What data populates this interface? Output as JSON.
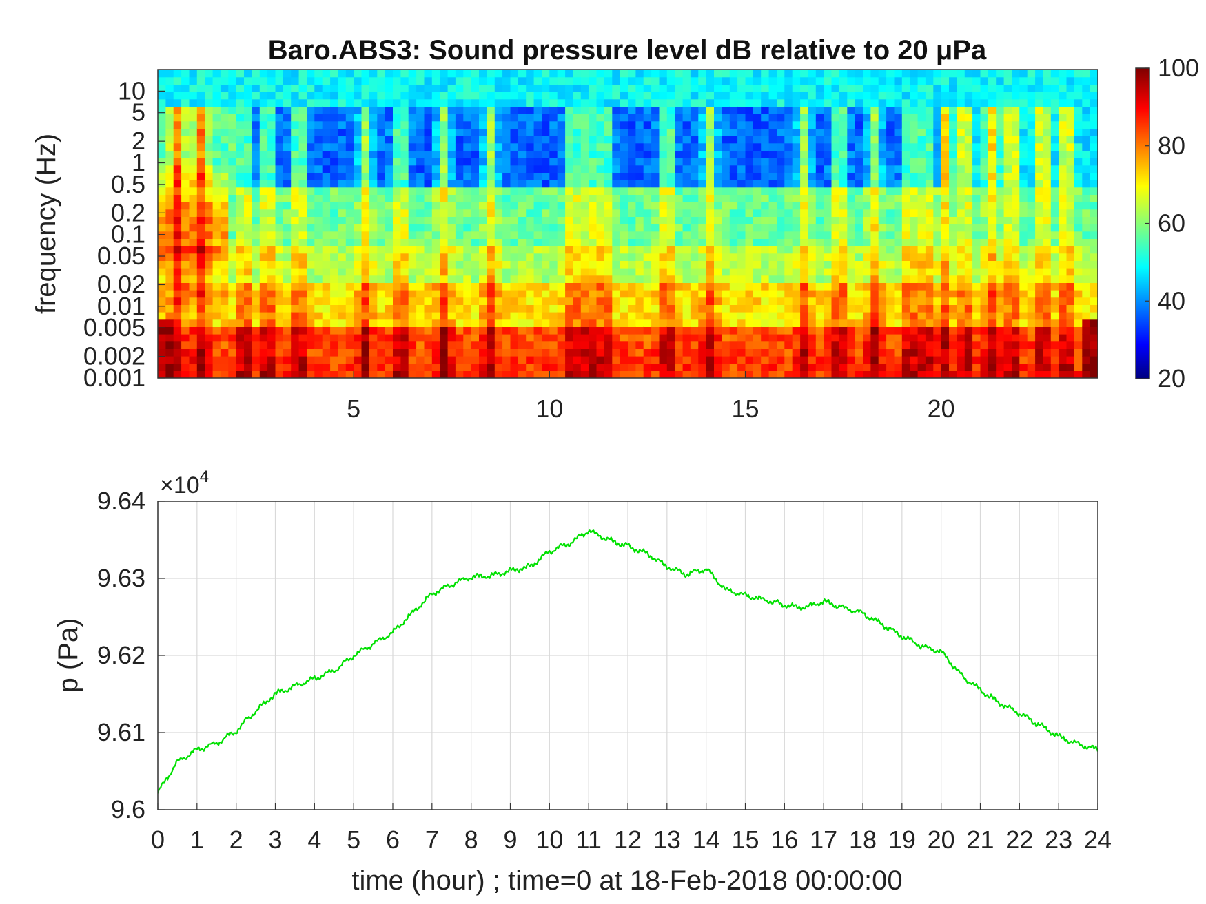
{
  "chart_data": [
    {
      "type": "heatmap",
      "title": "Baro.ABS3: Sound pressure level dB relative to 20 μPa",
      "ylabel": "frequency (Hz)",
      "xlabel": "",
      "yscale": "log",
      "ylim": [
        0.001,
        20
      ],
      "xlim": [
        0,
        24
      ],
      "x_ticks": [
        "5",
        "10",
        "15",
        "20"
      ],
      "x_tick_values": [
        5,
        10,
        15,
        20
      ],
      "y_ticks": [
        "10",
        "5",
        "2",
        "1",
        "0.5",
        "0.2",
        "0.1",
        "0.05",
        "0.02",
        "0.01",
        "0.005",
        "0.002",
        "0.001"
      ],
      "y_tick_values": [
        10,
        5,
        2,
        1,
        0.5,
        0.2,
        0.1,
        0.05,
        0.02,
        0.01,
        0.005,
        0.002,
        0.001
      ],
      "colormap": "jet",
      "colorbar": {
        "range": [
          20,
          100
        ],
        "ticks": [
          "100",
          "80",
          "60",
          "40",
          "20"
        ],
        "tick_values": [
          100,
          80,
          60,
          40,
          20
        ]
      },
      "description_levels_db": {
        "above_5Hz": 50,
        "0.5_to_5Hz_quiet": 38,
        "0.02_to_0.5Hz": 58,
        "0.005_to_0.02Hz": 72,
        "below_0.005Hz": 88
      }
    },
    {
      "type": "line",
      "title": "",
      "xlabel": "time (hour) ; time=0 at 18-Feb-2018 00:00:00",
      "ylabel": "p (Pa)",
      "y_multiplier": "×10",
      "y_multiplier_exponent": "4",
      "xlim": [
        0,
        24
      ],
      "ylim": [
        9.6,
        9.64
      ],
      "x_ticks": [
        "0",
        "1",
        "2",
        "3",
        "4",
        "5",
        "6",
        "7",
        "8",
        "9",
        "10",
        "11",
        "12",
        "13",
        "14",
        "15",
        "16",
        "17",
        "18",
        "19",
        "20",
        "21",
        "22",
        "23",
        "24"
      ],
      "y_ticks": [
        "9.64",
        "9.63",
        "9.62",
        "9.61",
        "9.6"
      ],
      "y_tick_values": [
        9.64,
        9.63,
        9.62,
        9.61,
        9.6
      ],
      "grid": true,
      "series": [
        {
          "color": "#00e000",
          "x": [
            0,
            0.5,
            1,
            1.5,
            2,
            2.5,
            3,
            3.5,
            4,
            4.5,
            5,
            5.5,
            6,
            6.5,
            7,
            7.5,
            8,
            8.5,
            9,
            9.5,
            10,
            10.5,
            11,
            11.5,
            12,
            12.5,
            13,
            13.5,
            14,
            14.5,
            15,
            15.5,
            16,
            16.5,
            17,
            17.5,
            18,
            18.5,
            19,
            19.5,
            20,
            20.5,
            21,
            21.5,
            22,
            22.5,
            23,
            23.5,
            24
          ],
          "y": [
            9.6022,
            9.6062,
            9.6078,
            9.6086,
            9.6102,
            9.6128,
            9.615,
            9.616,
            9.617,
            9.618,
            9.62,
            9.6215,
            9.623,
            9.6255,
            9.628,
            9.6292,
            9.6302,
            9.6303,
            9.631,
            9.6315,
            9.6335,
            9.6345,
            9.6362,
            9.635,
            9.6342,
            9.6332,
            9.6315,
            9.6305,
            9.6312,
            9.6285,
            9.6278,
            9.6272,
            9.6265,
            9.6262,
            9.627,
            9.6262,
            9.6255,
            9.624,
            9.6225,
            9.6212,
            9.6205,
            9.6175,
            9.6155,
            9.6138,
            9.6125,
            9.611,
            9.6095,
            9.6085,
            9.6078
          ]
        }
      ]
    }
  ]
}
